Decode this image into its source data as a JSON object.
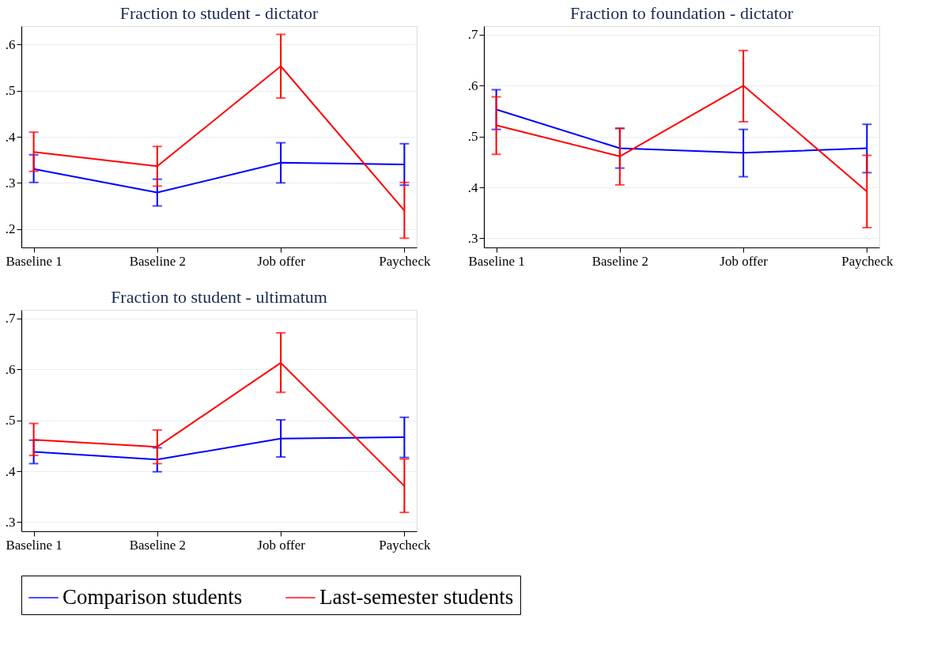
{
  "chart_data": [
    {
      "type": "line",
      "title": "Fraction to student - dictator",
      "categories": [
        "Baseline 1",
        "Baseline 2",
        "Job offer",
        "Paycheck"
      ],
      "ylim": [
        0.16,
        0.64
      ],
      "yticks": [
        {
          "value": 0.2,
          "label": ".2"
        },
        {
          "value": 0.3,
          "label": ".3"
        },
        {
          "value": 0.4,
          "label": ".4"
        },
        {
          "value": 0.5,
          "label": ".5"
        },
        {
          "value": 0.6,
          "label": ".6"
        }
      ],
      "grid": "y",
      "legend": "bottom",
      "marker": "none",
      "line_style": "solid",
      "series": [
        {
          "name": "Comparison students",
          "color": "#0000ff",
          "values": [
            0.33,
            0.279,
            0.344,
            0.34
          ],
          "errors": [
            [
              0.301,
              0.361
            ],
            [
              0.25,
              0.308
            ],
            [
              0.3,
              0.387
            ],
            [
              0.295,
              0.385
            ]
          ]
        },
        {
          "name": "Last-semester students",
          "color": "#ff0000",
          "values": [
            0.367,
            0.336,
            0.553,
            0.24
          ],
          "errors": [
            [
              0.325,
              0.41
            ],
            [
              0.293,
              0.379
            ],
            [
              0.484,
              0.622
            ],
            [
              0.18,
              0.301
            ]
          ]
        }
      ]
    },
    {
      "type": "line",
      "title": "Fraction to foundation - dictator",
      "categories": [
        "Baseline 1",
        "Baseline 2",
        "Job offer",
        "Paycheck"
      ],
      "ylim": [
        0.282,
        0.717
      ],
      "yticks": [
        {
          "value": 0.3,
          "label": ".3"
        },
        {
          "value": 0.4,
          "label": ".4"
        },
        {
          "value": 0.5,
          "label": ".5"
        },
        {
          "value": 0.6,
          "label": ".6"
        },
        {
          "value": 0.7,
          "label": ".7"
        }
      ],
      "grid": "y",
      "legend": "bottom",
      "marker": "none",
      "line_style": "solid",
      "series": [
        {
          "name": "Comparison students",
          "color": "#0000ff",
          "values": [
            0.553,
            0.477,
            0.468,
            0.477
          ],
          "errors": [
            [
              0.514,
              0.592
            ],
            [
              0.438,
              0.516
            ],
            [
              0.421,
              0.514
            ],
            [
              0.429,
              0.524
            ]
          ]
        },
        {
          "name": "Last-semester students",
          "color": "#ff0000",
          "values": [
            0.522,
            0.461,
            0.6,
            0.392
          ],
          "errors": [
            [
              0.465,
              0.578
            ],
            [
              0.405,
              0.516
            ],
            [
              0.529,
              0.669
            ],
            [
              0.321,
              0.463
            ]
          ]
        }
      ]
    },
    {
      "type": "line",
      "title": "Fraction to student - ultimatum",
      "categories": [
        "Baseline 1",
        "Baseline 2",
        "Job offer",
        "Paycheck"
      ],
      "ylim": [
        0.282,
        0.717
      ],
      "yticks": [
        {
          "value": 0.3,
          "label": ".3"
        },
        {
          "value": 0.4,
          "label": ".4"
        },
        {
          "value": 0.5,
          "label": ".5"
        },
        {
          "value": 0.6,
          "label": ".6"
        },
        {
          "value": 0.7,
          "label": ".7"
        }
      ],
      "grid": "y",
      "legend": "bottom",
      "marker": "none",
      "line_style": "solid",
      "series": [
        {
          "name": "Comparison students",
          "color": "#0000ff",
          "values": [
            0.438,
            0.423,
            0.464,
            0.467
          ],
          "errors": [
            [
              0.415,
              0.461
            ],
            [
              0.399,
              0.446
            ],
            [
              0.428,
              0.501
            ],
            [
              0.427,
              0.506
            ]
          ]
        },
        {
          "name": "Last-semester students",
          "color": "#ff0000",
          "values": [
            0.462,
            0.448,
            0.613,
            0.371
          ],
          "errors": [
            [
              0.431,
              0.494
            ],
            [
              0.415,
              0.481
            ],
            [
              0.555,
              0.672
            ],
            [
              0.319,
              0.424
            ]
          ]
        }
      ]
    }
  ]
}
